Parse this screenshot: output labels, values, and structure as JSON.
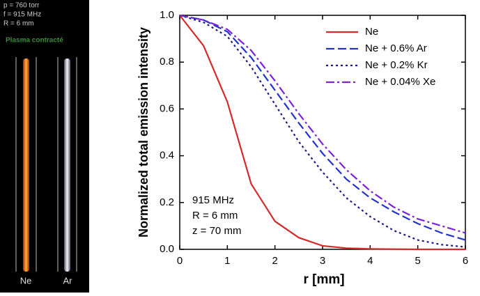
{
  "photo_panel": {
    "lines": [
      "p = 760 torr",
      "f = 915 MHz",
      "R = 6 mm"
    ],
    "caption": "Plasma contracté",
    "tubes": [
      "Ne",
      "Ar"
    ]
  },
  "chart_data": {
    "type": "line",
    "xlabel": "r [mm]",
    "ylabel": "Normalized total emission intensity",
    "annotation": [
      "915 MHz",
      "R = 6 mm",
      "z = 70 mm"
    ],
    "x": [
      0,
      0.5,
      1,
      1.5,
      2,
      2.5,
      3,
      3.5,
      4,
      4.5,
      5,
      5.5,
      6
    ],
    "series": [
      {
        "name": "Ne",
        "color": "#d42a2a",
        "dash": "solid",
        "values": [
          1.0,
          0.87,
          0.63,
          0.28,
          0.12,
          0.05,
          0.015,
          0.005,
          0.002,
          0.001,
          0,
          0,
          0
        ]
      },
      {
        "name": "Ne + 0.6% Ar",
        "color": "#2233cc",
        "dash": "dash",
        "values": [
          1.0,
          0.98,
          0.93,
          0.82,
          0.68,
          0.54,
          0.41,
          0.3,
          0.22,
          0.16,
          0.11,
          0.07,
          0.04
        ]
      },
      {
        "name": "Ne + 0.2% Kr",
        "color": "#1a1a80",
        "dash": "dot",
        "values": [
          1.0,
          0.97,
          0.91,
          0.78,
          0.62,
          0.46,
          0.33,
          0.22,
          0.14,
          0.08,
          0.04,
          0.02,
          0.01
        ]
      },
      {
        "name": "Ne + 0.04% Xe",
        "color": "#7a22d6",
        "dash": "dashdot",
        "values": [
          1.0,
          0.98,
          0.94,
          0.85,
          0.72,
          0.58,
          0.45,
          0.34,
          0.25,
          0.18,
          0.13,
          0.1,
          0.07
        ]
      }
    ],
    "xlim": [
      0,
      6
    ],
    "xticks": [
      0,
      1,
      2,
      3,
      4,
      5,
      6
    ],
    "ylim": [
      0,
      1.0
    ],
    "yticks": [
      {
        "value": 0,
        "label": "0.0"
      },
      0.2,
      0.4,
      0.6,
      0.8,
      {
        "value": 1.0,
        "label": "1.0"
      }
    ],
    "legend": "upper right"
  }
}
